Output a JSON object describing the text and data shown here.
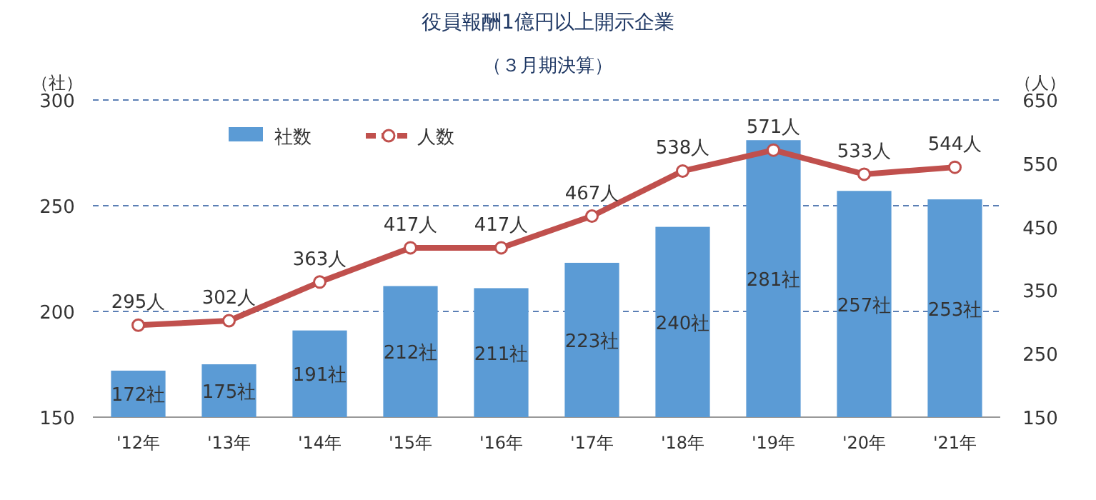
{
  "chart_data": {
    "type": "bar",
    "title": "役員報酬1億円以上開示企業",
    "subtitle": "（３月期決算）",
    "ylabel": "（社）",
    "y2label": "（人）",
    "categories": [
      "'12年",
      "'13年",
      "'14年",
      "'15年",
      "'16年",
      "'17年",
      "'18年",
      "'19年",
      "'20年",
      "'21年"
    ],
    "series": [
      {
        "name": "社数",
        "color": "#5b9bd5",
        "values": [
          172,
          175,
          191,
          212,
          211,
          223,
          240,
          281,
          257,
          253
        ],
        "value_labels": [
          "172社",
          "175社",
          "191社",
          "212社",
          "211社",
          "223社",
          "240社",
          "281社",
          "257社",
          "253社"
        ]
      },
      {
        "name": "人数",
        "type": "line",
        "axis": "y2",
        "color": "#c0504d",
        "marker": "circle",
        "values": [
          295,
          302,
          363,
          417,
          417,
          467,
          538,
          571,
          533,
          544
        ],
        "value_labels": [
          "295人",
          "302人",
          "363人",
          "417人",
          "417人",
          "467人",
          "538人",
          "571人",
          "533人",
          "544人"
        ]
      }
    ],
    "ylim": [
      150,
      300
    ],
    "yticks": [
      150,
      200,
      250,
      300
    ],
    "y2lim": [
      150,
      650
    ],
    "y2ticks": [
      150,
      250,
      350,
      450,
      550,
      650
    ],
    "grid": "y",
    "legend": "top left"
  }
}
